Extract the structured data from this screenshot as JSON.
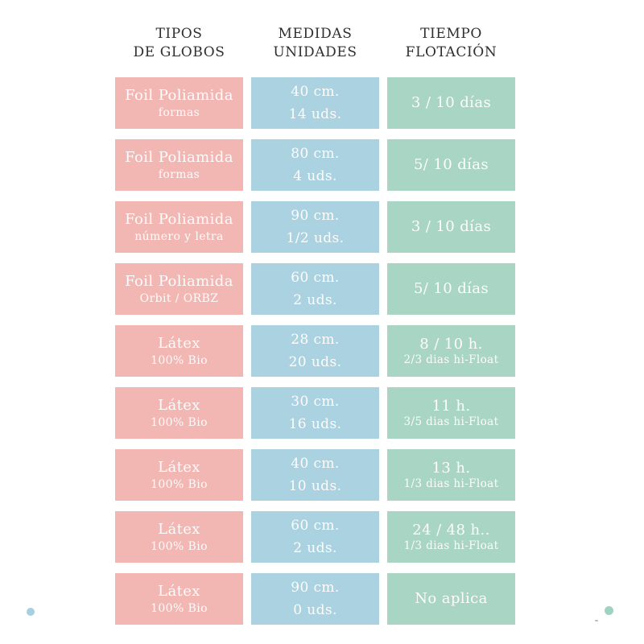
{
  "colors": {
    "type_cell": "#f2b6b3",
    "measure_cell": "#abd2e0",
    "float_cell": "#a9d5c5",
    "header_text": "#2f2f2f",
    "cell_text": "#fdfcfc",
    "dot_blue": "#a6cfe0",
    "dot_teal": "#9ed3c0",
    "speck": "#bbbbbb",
    "background": "#ffffff"
  },
  "table": {
    "headers": [
      {
        "line1": "TIPOS",
        "line2": "DE GLOBOS"
      },
      {
        "line1": "MEDIDAS",
        "line2": "UNIDADES"
      },
      {
        "line1": "TIEMPO",
        "line2": "FLOTACIÓN"
      }
    ],
    "rows": [
      {
        "type1": "Foil Poliamida",
        "type2": "formas",
        "measure1": "40 cm.",
        "measure2": "14 uds.",
        "float1": "3 / 10 días",
        "float2": ""
      },
      {
        "type1": "Foil Poliamida",
        "type2": "formas",
        "measure1": "80 cm.",
        "measure2": "4 uds.",
        "float1": "5/ 10 días",
        "float2": ""
      },
      {
        "type1": "Foil Poliamida",
        "type2": "número y letra",
        "measure1": "90 cm.",
        "measure2": "1/2 uds.",
        "float1": "3 / 10 días",
        "float2": ""
      },
      {
        "type1": "Foil Poliamida",
        "type2": "Orbit / ORBZ",
        "measure1": "60 cm.",
        "measure2": "2 uds.",
        "float1": "5/ 10 días",
        "float2": ""
      },
      {
        "type1": "Látex",
        "type2": "100% Bio",
        "measure1": "28 cm.",
        "measure2": "20 uds.",
        "float1": "8 / 10 h.",
        "float2": "2/3 dias hi-Float"
      },
      {
        "type1": "Látex",
        "type2": "100% Bio",
        "measure1": "30 cm.",
        "measure2": "16 uds.",
        "float1": "11 h.",
        "float2": "3/5 dias hi-Float"
      },
      {
        "type1": "Látex",
        "type2": "100% Bio",
        "measure1": "40 cm.",
        "measure2": "10 uds.",
        "float1": "13 h.",
        "float2": "1/3 dias hi-Float"
      },
      {
        "type1": "Látex",
        "type2": "100% Bio",
        "measure1": "60 cm.",
        "measure2": "2 uds.",
        "float1": "24 / 48 h..",
        "float2": "1/3 dias hi-Float"
      },
      {
        "type1": "Látex",
        "type2": "100% Bio",
        "measure1": "90 cm.",
        "measure2": "0 uds.",
        "float1": "No aplica",
        "float2": ""
      }
    ]
  },
  "chart_data": {
    "type": "table",
    "title": "Tipos de globos, medidas/unidades y tiempo de flotación",
    "columns": [
      "TIPOS DE GLOBOS",
      "MEDIDAS UNIDADES",
      "TIEMPO FLOTACIÓN"
    ],
    "rows": [
      [
        "Foil Poliamida (formas)",
        "40 cm. / 14 uds.",
        "3 / 10 días"
      ],
      [
        "Foil Poliamida (formas)",
        "80 cm. / 4 uds.",
        "5/ 10 días"
      ],
      [
        "Foil Poliamida (número y letra)",
        "90 cm. / 1/2 uds.",
        "3 / 10 días"
      ],
      [
        "Foil Poliamida (Orbit / ORBZ)",
        "60 cm. / 2 uds.",
        "5/ 10 días"
      ],
      [
        "Látex (100% Bio)",
        "28 cm. / 20 uds.",
        "8 / 10 h. · 2/3 dias hi-Float"
      ],
      [
        "Látex (100% Bio)",
        "30 cm. / 16 uds.",
        "11 h. · 3/5 dias hi-Float"
      ],
      [
        "Látex (100% Bio)",
        "40 cm. / 10 uds.",
        "13 h. · 1/3 dias hi-Float"
      ],
      [
        "Látex (100% Bio)",
        "60 cm. / 2 uds.",
        "24 / 48 h.. · 1/3 dias hi-Float"
      ],
      [
        "Látex (100% Bio)",
        "90 cm. / 0 uds.",
        "No aplica"
      ]
    ]
  }
}
